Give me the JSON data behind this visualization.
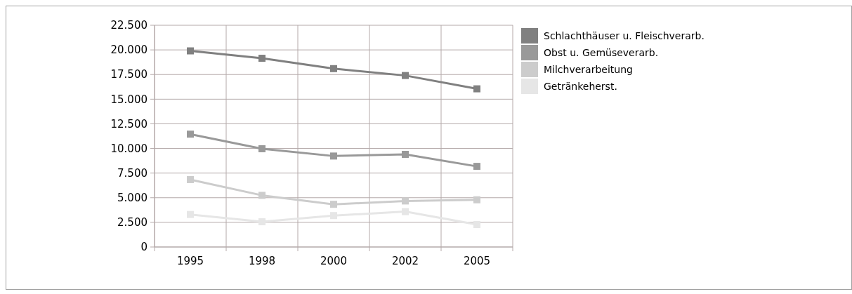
{
  "chart_data": {
    "type": "line",
    "categories": [
      "1995",
      "1998",
      "2000",
      "2002",
      "2005"
    ],
    "series": [
      {
        "name": "Schlachthäuser u. Fleischverarb.",
        "color": "#808080",
        "values": [
          19900,
          19150,
          18100,
          17400,
          16050
        ]
      },
      {
        "name": "Obst u. Gemüseverarb.",
        "color": "#999999",
        "values": [
          11450,
          9970,
          9230,
          9400,
          8180
        ]
      },
      {
        "name": "Milchverarbeitung",
        "color": "#cccccc",
        "values": [
          6840,
          5240,
          4330,
          4670,
          4790
        ]
      },
      {
        "name": "Getränkeherst.",
        "color": "#e6e6e6",
        "values": [
          3300,
          2560,
          3190,
          3590,
          2280
        ]
      }
    ],
    "ylim": [
      0,
      22500
    ],
    "yticks": [
      {
        "value": 0,
        "label": "0"
      },
      {
        "value": 2500,
        "label": "2.500"
      },
      {
        "value": 5000,
        "label": "5.000"
      },
      {
        "value": 7500,
        "label": "7.500"
      },
      {
        "value": 10000,
        "label": "10.000"
      },
      {
        "value": 12500,
        "label": "12.500"
      },
      {
        "value": 15000,
        "label": "15.000"
      },
      {
        "value": 17500,
        "label": "17.500"
      },
      {
        "value": 20000,
        "label": "20.000"
      },
      {
        "value": 22500,
        "label": "22.500"
      }
    ],
    "grid": true,
    "legend": "top right",
    "marker": "square"
  }
}
